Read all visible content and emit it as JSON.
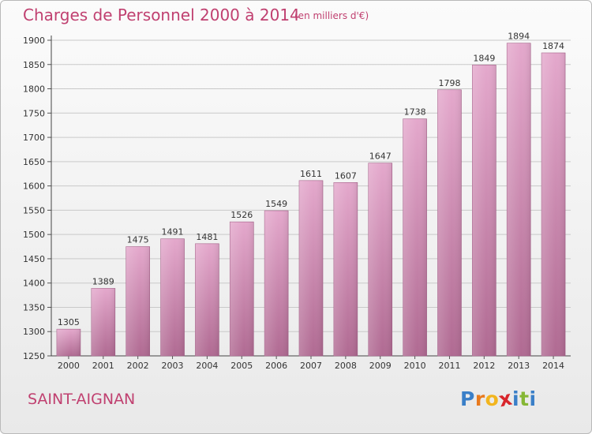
{
  "header": {
    "title": "Charges de Personnel 2000 à 2014",
    "subtitle": "(en milliers d'€)"
  },
  "commune": "SAINT-AIGNAN",
  "brand": {
    "name": "Proxiti",
    "letters": [
      "P",
      "r",
      "o",
      "x",
      "i",
      "t",
      "i"
    ],
    "letter_colors": [
      "#3a7fc8",
      "#e87a1e",
      "#f2b51e",
      "#d8262c",
      "#3a7fc8",
      "#86b735",
      "#3a7fc8"
    ]
  },
  "chart_data": {
    "type": "bar",
    "title": "Charges de Personnel 2000 à 2014",
    "subtitle": "(en milliers d'€)",
    "categories": [
      "2000",
      "2001",
      "2002",
      "2003",
      "2004",
      "2005",
      "2006",
      "2007",
      "2008",
      "2009",
      "2010",
      "2011",
      "2012",
      "2013",
      "2014"
    ],
    "values": [
      1305,
      1389,
      1475,
      1491,
      1481,
      1526,
      1549,
      1611,
      1607,
      1647,
      1738,
      1798,
      1849,
      1894,
      1874
    ],
    "ylim": [
      1250,
      1900
    ],
    "yticks": [
      1250,
      1300,
      1350,
      1400,
      1450,
      1500,
      1550,
      1600,
      1650,
      1700,
      1750,
      1800,
      1850,
      1900
    ],
    "grid": true,
    "bar_color_top": "#e4a8cc",
    "bar_color_bottom": "#b06a92"
  }
}
